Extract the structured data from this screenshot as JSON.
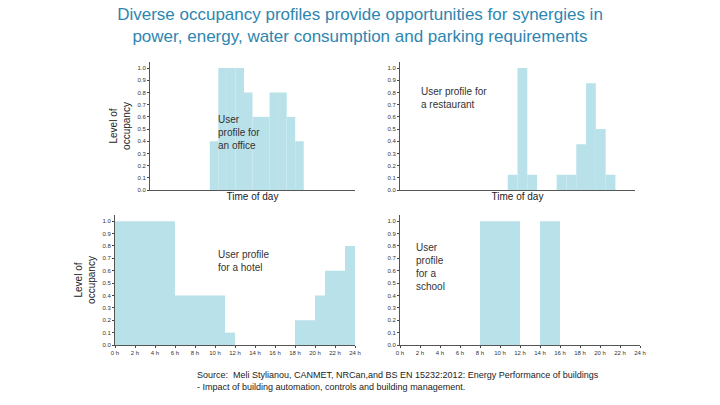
{
  "title": [
    "Diverse occupancy profiles provide opportunities for synergies in",
    "power, energy, water consumption and parking requirements"
  ],
  "source": [
    "Source:  Meli Stylianou, CANMET, NRCan,and BS EN 15232:2012: Energy Performance of buildings",
    "- Impact of building automation, controls and building management."
  ],
  "chart_data": [
    {
      "type": "bar",
      "annotation": [
        "User",
        "profile for",
        "an office"
      ],
      "x": [
        0,
        1,
        2,
        3,
        4,
        5,
        6,
        7,
        8,
        9,
        10,
        11,
        12,
        13,
        14,
        15,
        16,
        17,
        18,
        19,
        20,
        21,
        22,
        23
      ],
      "values": [
        0,
        0,
        0,
        0,
        0,
        0,
        0,
        0.4,
        1,
        1,
        1,
        0.8,
        0.6,
        0.6,
        0.8,
        0.8,
        0.6,
        0.4,
        0,
        0,
        0,
        0,
        0,
        0
      ],
      "color": "#b9e1e9",
      "xlim": [
        0,
        24
      ],
      "ylim": [
        0,
        1.05
      ],
      "yticks": [
        {
          "value": 0,
          "label": "0.0"
        },
        0.1,
        0.2,
        0.3,
        0.4,
        0.5,
        0.6,
        0.7,
        0.8,
        0.9,
        {
          "value": 1,
          "label": "1.0"
        }
      ],
      "x_label": "Time of day",
      "y_label": [
        "Level of",
        "occupancy"
      ],
      "tick_labels": "y",
      "grid": false
    },
    {
      "type": "bar",
      "annotation": [
        "User profile for",
        "a restaurant"
      ],
      "x": [
        0,
        1,
        2,
        3,
        4,
        5,
        6,
        7,
        8,
        9,
        10,
        11,
        12,
        13,
        14,
        15,
        16,
        17,
        18,
        19,
        20,
        21,
        22,
        23
      ],
      "values": [
        0,
        0,
        0,
        0,
        0,
        0,
        0,
        0,
        0,
        0,
        0,
        0.125,
        1,
        0.125,
        0,
        0,
        0.125,
        0.125,
        0.375,
        0.875,
        0.5,
        0.125,
        0,
        0
      ],
      "color": "#b9e1e9",
      "xlim": [
        0,
        24
      ],
      "ylim": [
        0,
        1.05
      ],
      "yticks": [
        {
          "value": 0,
          "label": "0.0"
        },
        0.1,
        0.2,
        0.3,
        0.4,
        0.5,
        0.6,
        0.7,
        0.8,
        0.9,
        {
          "value": 1,
          "label": "1.0"
        }
      ],
      "x_label": "Time of day",
      "tick_labels": "y",
      "grid": false
    },
    {
      "type": "bar",
      "annotation": [
        "User profile",
        "for a hotel"
      ],
      "x": [
        0,
        1,
        2,
        3,
        4,
        5,
        6,
        7,
        8,
        9,
        10,
        11,
        12,
        13,
        14,
        15,
        16,
        17,
        18,
        19,
        20,
        21,
        22,
        23
      ],
      "values": [
        1,
        1,
        1,
        1,
        1,
        1,
        0.4,
        0.4,
        0.4,
        0.4,
        0.4,
        0.1,
        0,
        0,
        0,
        0,
        0,
        0,
        0.2,
        0.2,
        0.4,
        0.6,
        0.6,
        0.8
      ],
      "color": "#b9e1e9",
      "xlim": [
        0,
        24
      ],
      "ylim": [
        0,
        1.05
      ],
      "xticks": [
        {
          "value": 0,
          "label": "0 h"
        },
        {
          "value": 2,
          "label": "2 h"
        },
        {
          "value": 4,
          "label": "4 h"
        },
        {
          "value": 6,
          "label": "6 h"
        },
        {
          "value": 8,
          "label": "8 h"
        },
        {
          "value": 10,
          "label": "10 h"
        },
        {
          "value": 12,
          "label": "12 h"
        },
        {
          "value": 14,
          "label": "14 h"
        },
        {
          "value": 16,
          "label": "16 h"
        },
        {
          "value": 18,
          "label": "18 h"
        },
        {
          "value": 20,
          "label": "20 h"
        },
        {
          "value": 22,
          "label": "22 h"
        },
        {
          "value": 24,
          "label": "24 h"
        }
      ],
      "yticks": [
        {
          "value": 0,
          "label": "0.0"
        },
        0.1,
        0.2,
        0.3,
        0.4,
        0.5,
        0.6,
        0.7,
        0.8,
        0.9,
        {
          "value": 1,
          "label": "1.0"
        }
      ],
      "y_label": [
        "Level of",
        "occupancy"
      ],
      "grid": false
    },
    {
      "type": "bar",
      "annotation": [
        "User",
        "profile",
        "for a",
        "school"
      ],
      "x": [
        0,
        1,
        2,
        3,
        4,
        5,
        6,
        7,
        8,
        9,
        10,
        11,
        12,
        13,
        14,
        15,
        16,
        17,
        18,
        19,
        20,
        21,
        22,
        23
      ],
      "values": [
        0,
        0,
        0,
        0,
        0,
        0,
        0,
        0,
        1,
        1,
        1,
        1,
        0,
        0,
        1,
        1,
        0,
        0,
        0,
        0,
        0,
        0,
        0,
        0
      ],
      "color": "#b9e1e9",
      "xlim": [
        0,
        24
      ],
      "ylim": [
        0,
        1.05
      ],
      "xticks": [
        {
          "value": 0,
          "label": "0 h"
        },
        {
          "value": 2,
          "label": "2 h"
        },
        {
          "value": 4,
          "label": "4 h"
        },
        {
          "value": 6,
          "label": "6 h"
        },
        {
          "value": 8,
          "label": "8 h"
        },
        {
          "value": 10,
          "label": "10 h"
        },
        {
          "value": 12,
          "label": "12 h"
        },
        {
          "value": 14,
          "label": "14 h"
        },
        {
          "value": 16,
          "label": "16 h"
        },
        {
          "value": 18,
          "label": "18 h"
        },
        {
          "value": 20,
          "label": "20 h"
        },
        {
          "value": 22,
          "label": "22 h"
        },
        {
          "value": 24,
          "label": "24 h"
        }
      ],
      "yticks": [
        {
          "value": 0,
          "label": "0.0"
        },
        0.1,
        0.2,
        0.3,
        0.4,
        0.5,
        0.6,
        0.7,
        0.8,
        0.9,
        {
          "value": 1,
          "label": "1.0"
        }
      ],
      "grid": false
    }
  ]
}
